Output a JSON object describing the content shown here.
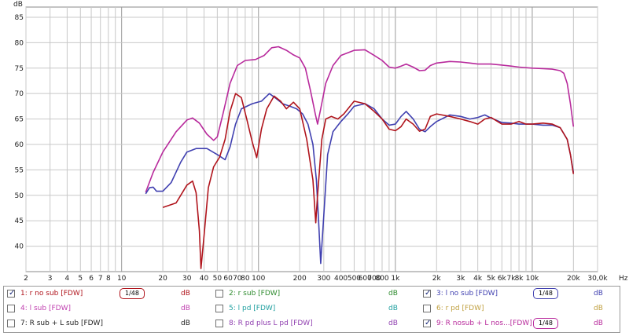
{
  "plot": {
    "y_axis_unit": "dB",
    "y_tick_labels": [
      "40",
      "45",
      "50",
      "55",
      "60",
      "65",
      "70",
      "75",
      "80",
      "85"
    ],
    "x_axis_unit": "Hz",
    "x_tick_labels": [
      "2",
      "3",
      "4",
      "5",
      "6",
      "7",
      "8",
      "10",
      "20",
      "30",
      "40",
      "50",
      "60",
      "70",
      "80",
      "100",
      "200",
      "300",
      "400",
      "500",
      "600",
      "700",
      "800",
      "1k",
      "2k",
      "3k",
      "4k",
      "5k",
      "6k",
      "7k",
      "8k",
      "10k",
      "20k",
      "30,0k"
    ],
    "grid_color": "#c8c8c8",
    "background": "#ffffff"
  },
  "chart_data": {
    "type": "line",
    "x_scale": "log",
    "xlabel": "Hz",
    "ylabel": "dB",
    "xlim": [
      2,
      30000
    ],
    "ylim": [
      35,
      87
    ],
    "grid": true,
    "series": [
      {
        "name": "1: r no sub [FDW]",
        "color": "#b0141c",
        "points": [
          [
            20,
            47.6
          ],
          [
            25,
            48.5
          ],
          [
            30,
            52
          ],
          [
            33,
            52.8
          ],
          [
            35,
            50.5
          ],
          [
            37,
            43
          ],
          [
            38,
            35.6
          ],
          [
            40,
            42
          ],
          [
            43,
            51.5
          ],
          [
            47,
            55.6
          ],
          [
            52,
            57.5
          ],
          [
            57,
            61
          ],
          [
            62,
            66.5
          ],
          [
            68,
            70
          ],
          [
            75,
            69.2
          ],
          [
            82,
            65
          ],
          [
            90,
            60.5
          ],
          [
            97,
            57.4
          ],
          [
            105,
            63
          ],
          [
            115,
            67
          ],
          [
            130,
            69.5
          ],
          [
            145,
            68.5
          ],
          [
            160,
            67
          ],
          [
            180,
            68.3
          ],
          [
            200,
            67
          ],
          [
            225,
            61
          ],
          [
            250,
            53
          ],
          [
            262,
            44.6
          ],
          [
            270,
            50
          ],
          [
            290,
            61
          ],
          [
            310,
            65
          ],
          [
            340,
            65.5
          ],
          [
            380,
            65
          ],
          [
            420,
            66
          ],
          [
            500,
            68.5
          ],
          [
            600,
            68
          ],
          [
            700,
            66.5
          ],
          [
            800,
            65
          ],
          [
            900,
            63
          ],
          [
            1000,
            62.7
          ],
          [
            1100,
            63.5
          ],
          [
            1200,
            65
          ],
          [
            1350,
            64
          ],
          [
            1500,
            62.6
          ],
          [
            1650,
            63
          ],
          [
            1800,
            65.5
          ],
          [
            2000,
            66
          ],
          [
            2500,
            65.5
          ],
          [
            3000,
            65
          ],
          [
            3500,
            64.5
          ],
          [
            4000,
            64
          ],
          [
            4500,
            65
          ],
          [
            5000,
            65.3
          ],
          [
            6000,
            64
          ],
          [
            7000,
            64
          ],
          [
            8000,
            64.5
          ],
          [
            9000,
            64
          ],
          [
            10000,
            64
          ],
          [
            12000,
            64.2
          ],
          [
            14000,
            64
          ],
          [
            16000,
            63.3
          ],
          [
            18000,
            61
          ],
          [
            19000,
            58
          ],
          [
            20000,
            54.2
          ]
        ]
      },
      {
        "name": "2: r sub [FDW]",
        "color": "#2e8b2e",
        "points": []
      },
      {
        "name": "3: l no sub [FDW]",
        "color": "#4040b0",
        "points": [
          [
            15,
            50.3
          ],
          [
            16,
            51.5
          ],
          [
            17,
            51.6
          ],
          [
            18,
            50.8
          ],
          [
            20,
            50.8
          ],
          [
            23,
            52.5
          ],
          [
            27,
            56.5
          ],
          [
            30,
            58.5
          ],
          [
            35,
            59.2
          ],
          [
            42,
            59.2
          ],
          [
            50,
            58
          ],
          [
            57,
            57
          ],
          [
            62,
            59.5
          ],
          [
            68,
            64
          ],
          [
            75,
            67
          ],
          [
            90,
            68
          ],
          [
            105,
            68.5
          ],
          [
            120,
            70
          ],
          [
            135,
            69
          ],
          [
            150,
            68
          ],
          [
            170,
            67.5
          ],
          [
            190,
            67
          ],
          [
            210,
            66
          ],
          [
            230,
            64
          ],
          [
            250,
            60
          ],
          [
            265,
            53
          ],
          [
            275,
            45
          ],
          [
            285,
            36.6
          ],
          [
            300,
            46
          ],
          [
            320,
            58
          ],
          [
            350,
            62.5
          ],
          [
            400,
            64.5
          ],
          [
            450,
            66
          ],
          [
            500,
            67.5
          ],
          [
            600,
            68
          ],
          [
            700,
            67
          ],
          [
            800,
            65
          ],
          [
            900,
            63.8
          ],
          [
            1000,
            64
          ],
          [
            1100,
            65.5
          ],
          [
            1200,
            66.5
          ],
          [
            1350,
            65
          ],
          [
            1500,
            63
          ],
          [
            1650,
            62.5
          ],
          [
            1800,
            63.5
          ],
          [
            2000,
            64.5
          ],
          [
            2500,
            65.8
          ],
          [
            3000,
            65.5
          ],
          [
            3500,
            65
          ],
          [
            4000,
            65.3
          ],
          [
            4500,
            65.8
          ],
          [
            5000,
            65.2
          ],
          [
            6000,
            64.3
          ],
          [
            7000,
            64.2
          ],
          [
            8000,
            64
          ],
          [
            10000,
            64
          ],
          [
            12000,
            63.8
          ],
          [
            14000,
            63.8
          ],
          [
            16000,
            63.3
          ],
          [
            18000,
            61
          ],
          [
            19000,
            58
          ],
          [
            20000,
            54.5
          ]
        ]
      },
      {
        "name": "4: l sub [FDW]",
        "color": "#c040b0",
        "points": []
      },
      {
        "name": "5: l pd [FDW]",
        "color": "#20a0a0",
        "points": []
      },
      {
        "name": "6: r pd [FDW]",
        "color": "#c0a040",
        "points": []
      },
      {
        "name": "7: R sub + L sub [FDW]",
        "color": "#222222",
        "points": []
      },
      {
        "name": "8: R pd plus L pd [FDW]",
        "color": "#9040b0",
        "points": []
      },
      {
        "name": "9: R nosub + L nos...[FDW]",
        "color": "#b82a9c",
        "points": [
          [
            15,
            50.6
          ],
          [
            17,
            54.5
          ],
          [
            20,
            58.5
          ],
          [
            25,
            62.5
          ],
          [
            30,
            64.8
          ],
          [
            33,
            65.2
          ],
          [
            37,
            64.2
          ],
          [
            42,
            62
          ],
          [
            47,
            60.8
          ],
          [
            50,
            61.5
          ],
          [
            55,
            66
          ],
          [
            62,
            72
          ],
          [
            70,
            75.5
          ],
          [
            80,
            76.5
          ],
          [
            95,
            76.7
          ],
          [
            110,
            77.5
          ],
          [
            125,
            79
          ],
          [
            140,
            79.2
          ],
          [
            160,
            78.5
          ],
          [
            180,
            77.6
          ],
          [
            200,
            77
          ],
          [
            220,
            75
          ],
          [
            240,
            70.5
          ],
          [
            260,
            66
          ],
          [
            270,
            64
          ],
          [
            285,
            67
          ],
          [
            310,
            72
          ],
          [
            350,
            75.5
          ],
          [
            400,
            77.5
          ],
          [
            500,
            78.5
          ],
          [
            600,
            78.6
          ],
          [
            700,
            77.5
          ],
          [
            800,
            76.5
          ],
          [
            900,
            75.2
          ],
          [
            1000,
            75
          ],
          [
            1100,
            75.4
          ],
          [
            1200,
            75.8
          ],
          [
            1350,
            75.2
          ],
          [
            1500,
            74.5
          ],
          [
            1650,
            74.6
          ],
          [
            1800,
            75.5
          ],
          [
            2000,
            76
          ],
          [
            2500,
            76.3
          ],
          [
            3000,
            76.2
          ],
          [
            3500,
            76
          ],
          [
            4000,
            75.8
          ],
          [
            4500,
            75.8
          ],
          [
            5000,
            75.8
          ],
          [
            6000,
            75.6
          ],
          [
            7000,
            75.4
          ],
          [
            8000,
            75.2
          ],
          [
            10000,
            75
          ],
          [
            12000,
            74.9
          ],
          [
            14000,
            74.8
          ],
          [
            16000,
            74.5
          ],
          [
            17000,
            74
          ],
          [
            18000,
            72
          ],
          [
            19000,
            68
          ],
          [
            20000,
            63.5
          ]
        ]
      }
    ]
  },
  "legend": [
    {
      "key": "1",
      "label": "1: r no sub [FDW]",
      "checked": true,
      "color": "#b0141c",
      "unit": "dB",
      "unit_color": "#b0141c",
      "smoothing": "1/48"
    },
    {
      "key": "2",
      "label": "2: r sub [FDW]",
      "checked": false,
      "color": "#2e8b2e",
      "unit": "dB",
      "unit_color": "#2e8b2e",
      "smoothing": ""
    },
    {
      "key": "3",
      "label": "3: l no sub [FDW]",
      "checked": true,
      "color": "#4040b0",
      "unit": "dB",
      "unit_color": "#4040b0",
      "smoothing": "1/48"
    },
    {
      "key": "4",
      "label": "4: l sub [FDW]",
      "checked": false,
      "color": "#c040b0",
      "unit": "dB",
      "unit_color": "#c040b0",
      "smoothing": ""
    },
    {
      "key": "5",
      "label": "5: l pd [FDW]",
      "checked": false,
      "color": "#20a0a0",
      "unit": "dB",
      "unit_color": "#20a0a0",
      "smoothing": ""
    },
    {
      "key": "6",
      "label": "6: r pd [FDW]",
      "checked": false,
      "color": "#c0a040",
      "unit": "dB",
      "unit_color": "#c0a040",
      "smoothing": ""
    },
    {
      "key": "7",
      "label": "7: R sub + L sub [FDW]",
      "checked": false,
      "color": "#222222",
      "unit": "dB",
      "unit_color": "#222222",
      "smoothing": ""
    },
    {
      "key": "8",
      "label": "8: R pd plus L pd [FDW]",
      "checked": false,
      "color": "#9040b0",
      "unit": "dB",
      "unit_color": "#9040b0",
      "smoothing": ""
    },
    {
      "key": "9",
      "label": "9: R nosub + L nos...[FDW]",
      "checked": true,
      "color": "#b82a9c",
      "unit": "dB",
      "unit_color": "#b82a9c",
      "smoothing": "1/48"
    }
  ]
}
